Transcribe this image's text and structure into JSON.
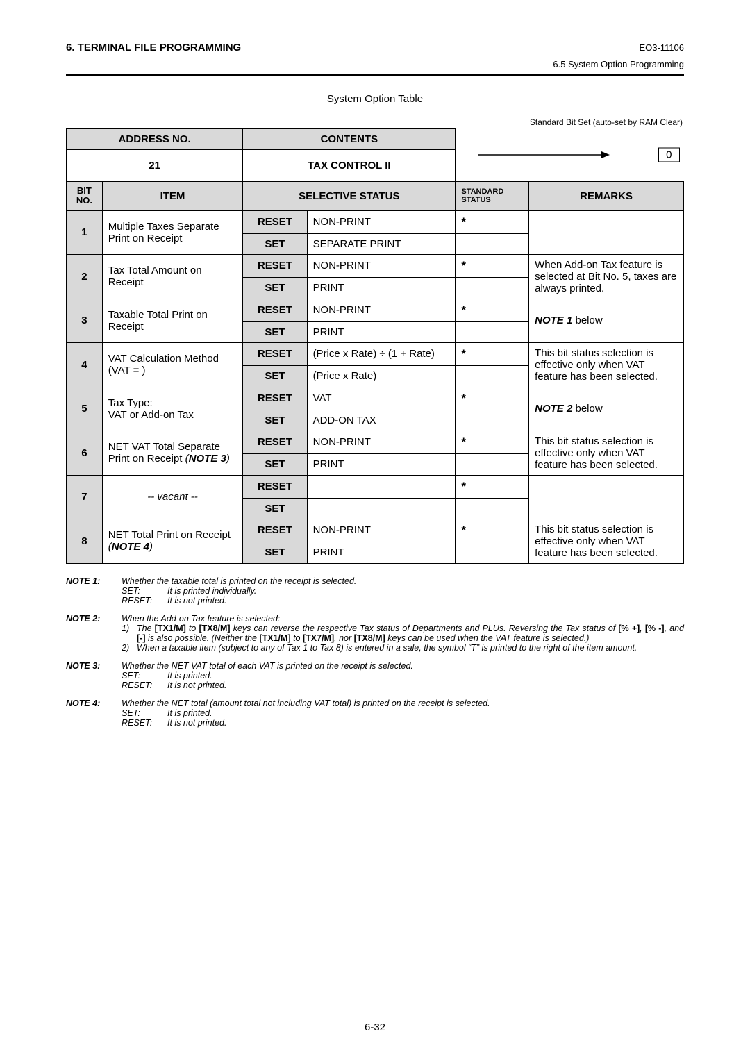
{
  "header": {
    "section_title": "6. TERMINAL FILE PROGRAMMING",
    "doc_code": "EO3-11106",
    "sub_section": "6.5 System Option Programming"
  },
  "table": {
    "title": "System Option Table",
    "bitset_label": "Standard Bit Set (auto-set by RAM Clear)",
    "arrow_value": "0",
    "columns": {
      "address_no": "ADDRESS NO.",
      "contents": "CONTENTS",
      "address_value": "21",
      "contents_value": "TAX CONTROL II",
      "bit_no": "BIT\nNO.",
      "item": "ITEM",
      "selective_status": "SELECTIVE STATUS",
      "standard_status": "STANDARD\nSTATUS",
      "remarks": "REMARKS"
    },
    "rows": [
      {
        "bit": "1",
        "item": "Multiple Taxes Separate Print on Receipt",
        "reset": "NON-PRINT",
        "set": "SEPARATE PRINT",
        "std": "*",
        "remarks": ""
      },
      {
        "bit": "2",
        "item": "Tax Total Amount on Receipt",
        "reset": "NON-PRINT",
        "set": "PRINT",
        "std": "*",
        "remarks": "When Add-on Tax feature is selected at Bit No. 5, taxes are always printed."
      },
      {
        "bit": "3",
        "item": "Taxable Total Print on Receipt",
        "reset": "NON-PRINT",
        "set": "PRINT",
        "std": "*",
        "remarks_html": "<span class='bold ital'>NOTE 1</span> below"
      },
      {
        "bit": "4",
        "item": "VAT Calculation Method (VAT = )",
        "reset": "(Price x Rate) ÷ (1 + Rate)",
        "set": "(Price x Rate)",
        "std": "*",
        "remarks": "This bit status selection is effective only when VAT feature has been selected."
      },
      {
        "bit": "5",
        "item": "Tax Type:\nVAT or Add-on Tax",
        "reset": "VAT",
        "set": "ADD-ON TAX",
        "std": "*",
        "remarks_html": "<span class='bold ital'>NOTE 2</span> below"
      },
      {
        "bit": "6",
        "item_html": "NET VAT Total Separate Print on Receipt <span class='ital'>(<span class='bold'>NOTE 3</span>)</span>",
        "reset": "NON-PRINT",
        "set": "PRINT",
        "std": "*",
        "remarks": "This bit status selection is effective only when VAT feature has been selected."
      },
      {
        "bit": "7",
        "item": "-- vacant --",
        "item_center": true,
        "reset": "",
        "set": "",
        "std": "*",
        "remarks": ""
      },
      {
        "bit": "8",
        "item_html": "NET Total Print on Receipt <span class='ital'>(<span class='bold'>NOTE 4</span>)</span>",
        "reset": "NON-PRINT",
        "set": "PRINT",
        "std": "*",
        "remarks": "This bit status selection is effective only when VAT feature has been selected."
      }
    ],
    "buttons": {
      "reset": "RESET",
      "set": "SET"
    }
  },
  "notes": [
    {
      "label": "NOTE 1:",
      "lines": [
        {
          "type": "plain",
          "text": "Whether the taxable total is printed on the receipt is selected."
        },
        {
          "type": "kv",
          "k": "SET:",
          "v": "It is printed individually."
        },
        {
          "type": "kv",
          "k": "RESET:",
          "v": "It is not printed."
        }
      ]
    },
    {
      "label": "NOTE 2:",
      "lines": [
        {
          "type": "plain",
          "text": "When the Add-on Tax feature is selected:"
        },
        {
          "type": "num",
          "n": "1)",
          "text": "The <span class='bold roman'>[TX1/M]</span> to <span class='bold roman'>[TX8/M]</span> keys can reverse the respective Tax status of Departments and PLUs.  Reversing the Tax status of <span class='bold roman'>[% +]</span>, <span class='bold roman'>[% -]</span>, and <span class='bold roman'>[-]</span> is also possible. (Neither the <span class='bold roman'>[TX1/M]</span> to <span class='bold roman'>[TX7/M]</span>, nor <span class='bold roman'>[TX8/M]</span> keys can be used when the VAT feature is selected.)"
        },
        {
          "type": "num",
          "n": "2)",
          "text": "When a taxable item (subject to any of Tax 1 to Tax 8) is entered in a sale, the symbol “T” is printed to the right of the item amount."
        }
      ]
    },
    {
      "label": "NOTE 3:",
      "lines": [
        {
          "type": "plain",
          "text": "Whether the NET VAT total of each VAT is printed on the receipt is selected."
        },
        {
          "type": "kv",
          "k": "SET:",
          "v": "It is printed."
        },
        {
          "type": "kv",
          "k": "RESET:",
          "v": "It is not printed."
        }
      ]
    },
    {
      "label": "NOTE 4:",
      "lines": [
        {
          "type": "plain",
          "text": "Whether the NET total (amount total not including VAT total) is printed on the receipt is selected."
        },
        {
          "type": "kv",
          "k": "SET:",
          "v": "It is printed."
        },
        {
          "type": "kv",
          "k": "RESET:",
          "v": "It is not printed."
        }
      ]
    }
  ],
  "page_number": "6-32"
}
